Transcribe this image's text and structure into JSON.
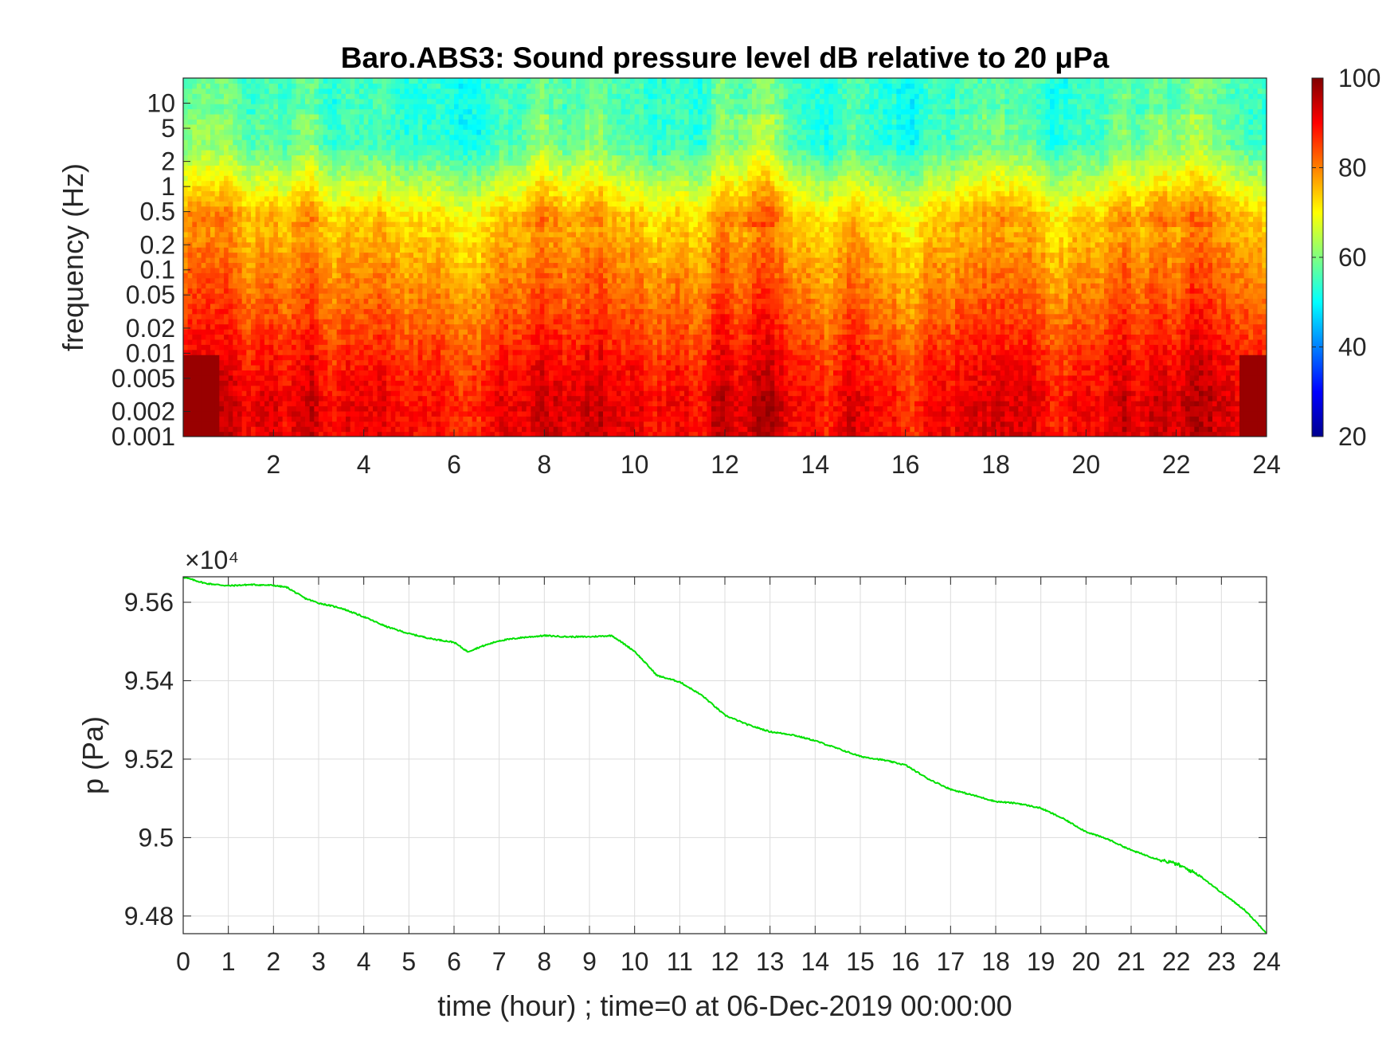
{
  "chart_data": [
    {
      "type": "heatmap",
      "title": "Baro.ABS3: Sound pressure level dB relative to 20 μPa",
      "ylabel": "frequency (Hz)",
      "xlabel": "",
      "x_ticks": [
        2,
        4,
        6,
        8,
        10,
        12,
        14,
        16,
        18,
        20,
        22,
        24
      ],
      "x_range": [
        0,
        24
      ],
      "y_scale": "log",
      "y_ticks": [
        10,
        5,
        2,
        1,
        0.5,
        0.2,
        0.1,
        0.05,
        0.02,
        0.01,
        0.005,
        0.002,
        0.001
      ],
      "y_range": [
        0.001,
        20
      ],
      "colormap": "jet",
      "colorbar": {
        "ticks": [
          100,
          80,
          60,
          40,
          20
        ],
        "range": [
          20,
          100
        ]
      },
      "note_values": "dB levels: high frequencies ~52-55 dB, mid band 65-85 dB, low frequencies 85-100 dB"
    },
    {
      "type": "line",
      "title": "",
      "xlabel": "time (hour) ; time=0 at 06-Dec-2019 00:00:00",
      "ylabel": "p (Pa)",
      "y_multiplier": "×10⁴",
      "x_ticks": [
        0,
        1,
        2,
        3,
        4,
        5,
        6,
        7,
        8,
        9,
        10,
        11,
        12,
        13,
        14,
        15,
        16,
        17,
        18,
        19,
        20,
        21,
        22,
        23,
        24
      ],
      "y_ticks": [
        9.56,
        9.54,
        9.52,
        9.5,
        9.48
      ],
      "xlim": [
        0,
        24
      ],
      "ylim": [
        9.4755,
        9.5665
      ],
      "grid": true,
      "series": [
        {
          "color": "#00e000",
          "x": [
            0,
            0.5,
            1,
            1.5,
            2,
            2.3,
            2.7,
            3,
            3.5,
            4,
            4.5,
            5,
            5.5,
            6,
            6.3,
            6.6,
            7,
            7.5,
            8,
            8.5,
            9,
            9.5,
            10,
            10.5,
            11,
            11.5,
            12,
            12.5,
            13,
            13.5,
            14,
            14.5,
            15,
            15.5,
            16,
            16.5,
            17,
            17.5,
            18,
            18.5,
            19,
            19.5,
            20,
            20.5,
            21,
            21.5,
            22,
            22.5,
            23,
            23.5,
            24
          ],
          "values": [
            9.5664,
            9.5648,
            9.5642,
            9.5645,
            9.5643,
            9.5638,
            9.561,
            9.5598,
            9.5585,
            9.5563,
            9.5538,
            9.552,
            9.5507,
            9.5498,
            9.5474,
            9.5487,
            9.5502,
            9.551,
            9.5515,
            9.5512,
            9.5512,
            9.5515,
            9.5475,
            9.5413,
            9.5397,
            9.5362,
            9.5312,
            9.5288,
            9.527,
            9.5262,
            9.5247,
            9.5227,
            9.5207,
            9.5198,
            9.5185,
            9.515,
            9.5123,
            9.5108,
            9.5092,
            9.5087,
            9.5075,
            9.5048,
            9.5015,
            9.4995,
            9.4968,
            9.4948,
            9.4933,
            9.4905,
            9.486,
            9.4817,
            9.4757
          ]
        }
      ]
    }
  ]
}
